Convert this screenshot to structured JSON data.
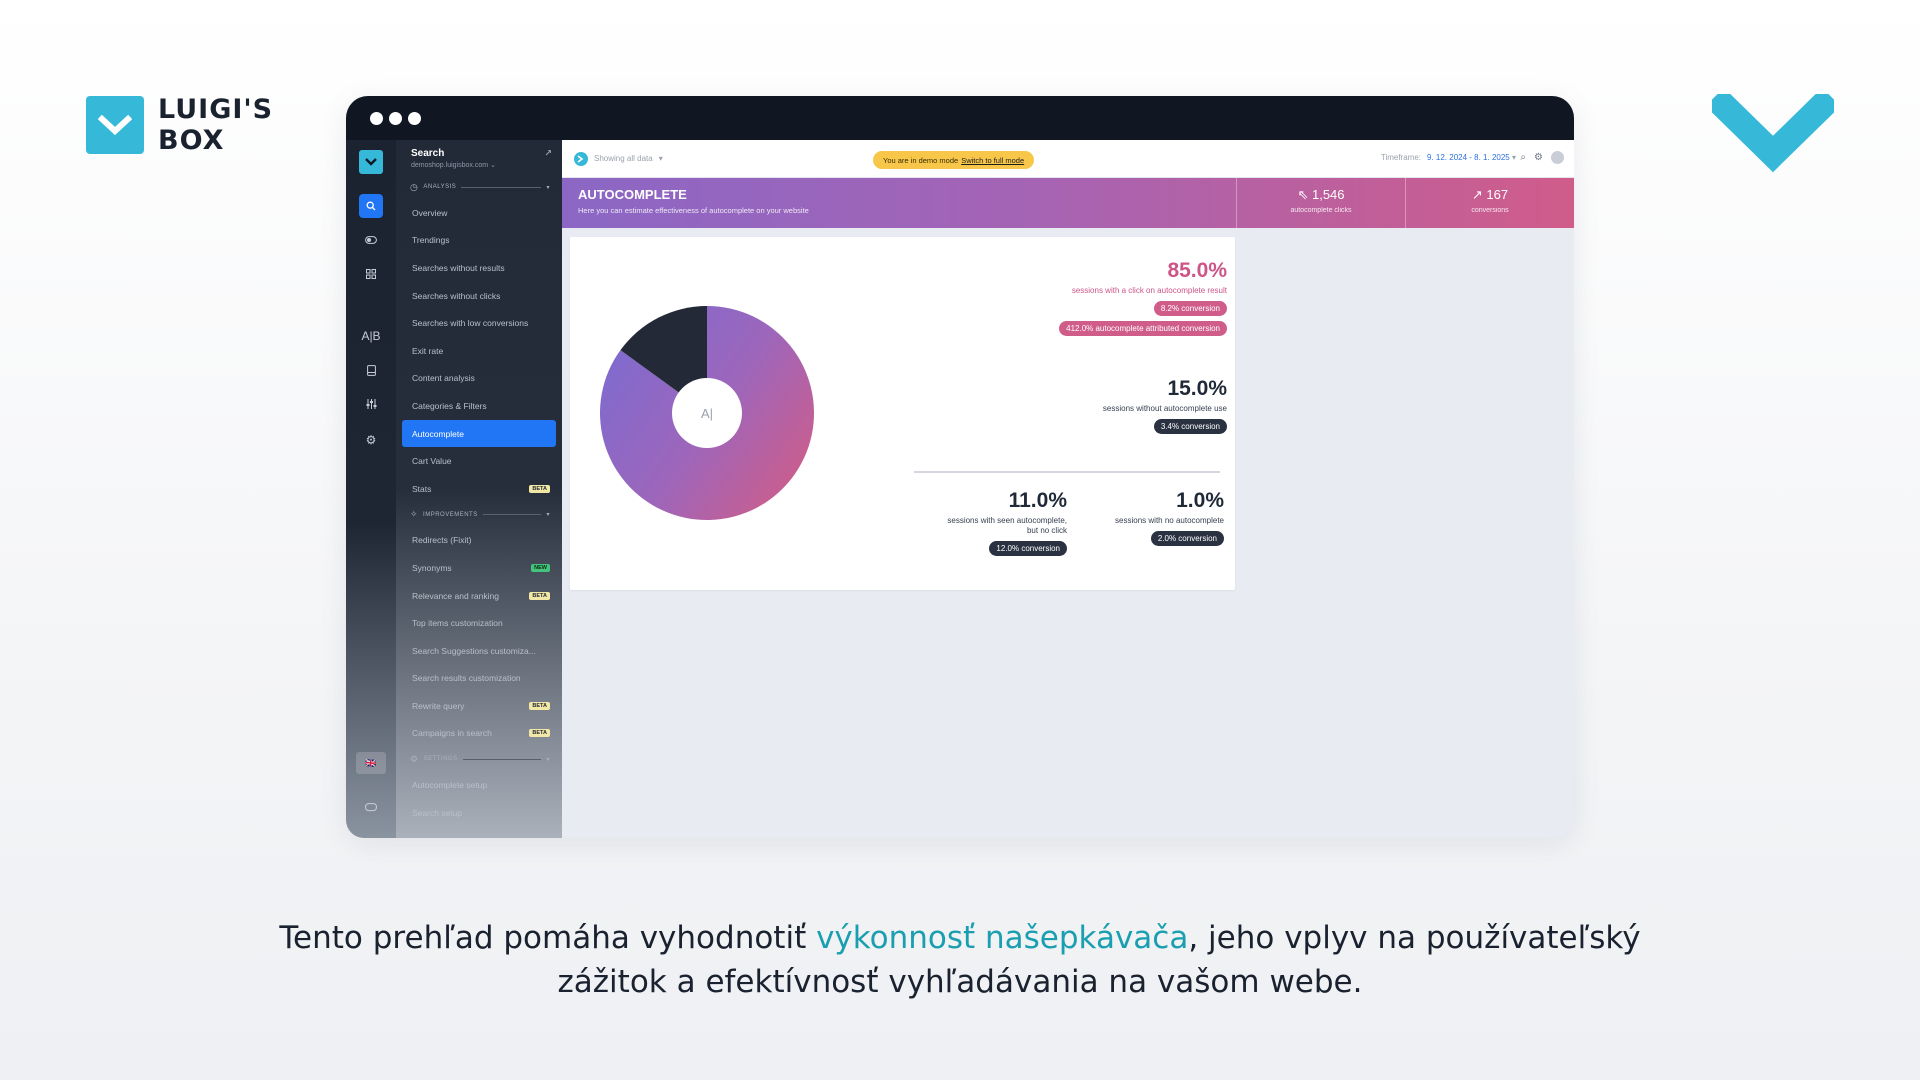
{
  "brand": {
    "line1": "LUIGI'S",
    "line2": "BOX",
    "color": "#36b8d8"
  },
  "sidebar": {
    "title": "Search",
    "subtitle": "demoshop.luigisbox.com",
    "section_analysis": "ANALYSIS",
    "section_improvements": "IMPROVEMENTS",
    "section_settings": "SETTINGS",
    "analysis_items": [
      {
        "label": "Overview"
      },
      {
        "label": "Trendings"
      },
      {
        "label": "Searches without results"
      },
      {
        "label": "Searches without clicks"
      },
      {
        "label": "Searches with low conversions"
      },
      {
        "label": "Exit rate"
      },
      {
        "label": "Content analysis"
      },
      {
        "label": "Categories & Filters"
      },
      {
        "label": "Autocomplete",
        "active": true
      },
      {
        "label": "Cart Value"
      },
      {
        "label": "Stats",
        "tag": "BETA"
      }
    ],
    "improvement_items": [
      {
        "label": "Redirects (Fixit)"
      },
      {
        "label": "Synonyms",
        "tag": "NEW"
      },
      {
        "label": "Relevance and ranking",
        "tag": "BETA"
      },
      {
        "label": "Top items customization"
      },
      {
        "label": "Search Suggestions customiza..."
      },
      {
        "label": "Search results customization"
      },
      {
        "label": "Rewrite query",
        "tag": "BETA"
      },
      {
        "label": "Campaigns in search",
        "tag": "BETA"
      }
    ],
    "settings_items": [
      {
        "label": "Autocomplete setup"
      },
      {
        "label": "Search setup"
      }
    ]
  },
  "topbar": {
    "showing": "Showing all data",
    "demo_text": "You are in demo mode",
    "demo_link": "Switch to full mode",
    "timeframe_label": "Timeframe:",
    "timeframe_value": "9. 12. 2024 - 8. 1. 2025"
  },
  "banner": {
    "title": "AUTOCOMPLETE",
    "desc": "Here you can estimate effectiveness of autocomplete on your website",
    "kpi1_value": "1,546",
    "kpi1_label": "autocomplete clicks",
    "kpi2_value": "167",
    "kpi2_label": "conversions"
  },
  "chart_data": {
    "type": "pie",
    "center_label": "A|",
    "slices": [
      {
        "label": "sessions with a click on autocomplete result",
        "value": 85.0
      },
      {
        "label": "sessions without autocomplete use",
        "value": 15.0
      }
    ],
    "colors": [
      "#8a68c8",
      "#232936"
    ]
  },
  "stats": {
    "s1": {
      "value": "85.0%",
      "label": "sessions with a click on autocomplete result",
      "badge1": "8.2% conversion",
      "badge2": "412.0% autocomplete attributed conversion"
    },
    "s2": {
      "value": "15.0%",
      "label": "sessions without autocomplete use",
      "badge": "3.4% conversion"
    },
    "s3": {
      "value": "11.0%",
      "label_line1": "sessions with seen autocomplete,",
      "label_line2": "but no click",
      "badge": "12.0% conversion"
    },
    "s4": {
      "value": "1.0%",
      "label": "sessions with no autocomplete",
      "badge": "2.0% conversion"
    }
  },
  "caption": {
    "part1": "Tento prehľad pomáha vyhodnotiť ",
    "highlight": "výkonnosť našepkávača",
    "part2": ", jeho vplyv na používateľský",
    "line2": "zážitok a efektívnosť vyhľadávania na vašom webe."
  }
}
